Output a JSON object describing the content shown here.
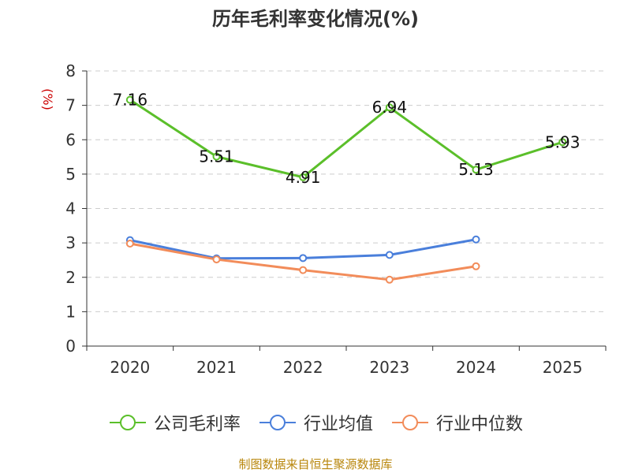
{
  "chart_data": {
    "type": "line",
    "title": "历年毛利率变化情况(%)",
    "ylabel": "(%)",
    "xlabel": "",
    "categories": [
      "2020",
      "2021",
      "2022",
      "2023",
      "2024",
      "2025"
    ],
    "ylim": [
      0,
      8
    ],
    "yticks": [
      0,
      1,
      2,
      3,
      4,
      5,
      6,
      7,
      8
    ],
    "grid": true,
    "legend_position": "bottom",
    "series": [
      {
        "name": "公司毛利率",
        "color": "#5bbf2a",
        "values": [
          7.16,
          5.51,
          4.91,
          6.94,
          5.13,
          5.93
        ],
        "show_labels": true
      },
      {
        "name": "行业均值",
        "color": "#4a7fdb",
        "values": [
          3.08,
          2.55,
          2.56,
          2.65,
          3.1,
          null
        ],
        "show_labels": false
      },
      {
        "name": "行业中位数",
        "color": "#f28c5a",
        "values": [
          2.98,
          2.52,
          2.21,
          1.93,
          2.32,
          null
        ],
        "show_labels": false
      }
    ]
  },
  "source": "制图数据来自恒生聚源数据库"
}
